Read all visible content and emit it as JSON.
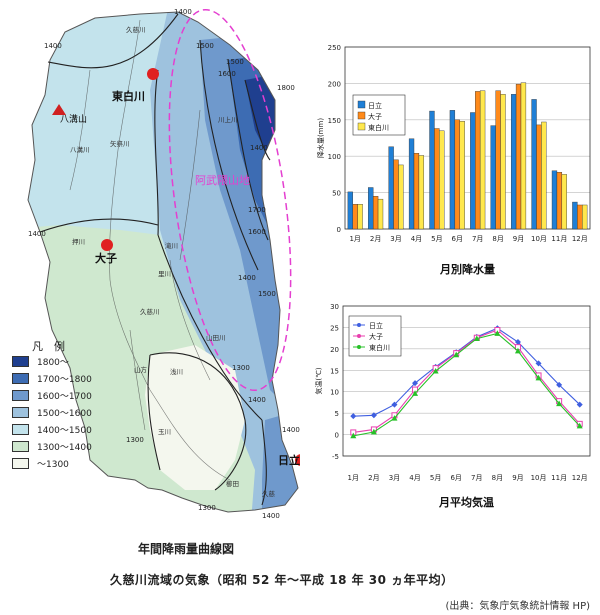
{
  "map": {
    "city_labels": {
      "higashishirakawa": "東白川",
      "daigo": "大子",
      "hitachi": "日立",
      "yamizo": "八溝山"
    },
    "region_label": "阿武隈山地",
    "isohyets": [
      "1400",
      "1400",
      "1400",
      "1400",
      "1400",
      "1400",
      "1500",
      "1500",
      "1500",
      "1600",
      "1600",
      "1700",
      "1800",
      "1300",
      "1300",
      "1300",
      "1400",
      "1400"
    ],
    "rivers": [
      "久慈川",
      "川上川",
      "矢祭川",
      "八溝川",
      "押川",
      "滝川",
      "里川",
      "久慈川",
      "山田川",
      "浅川",
      "玉川",
      "山方"
    ],
    "places": [
      "櫛田",
      "久慈"
    ],
    "caption": "年間降雨量曲線図"
  },
  "legend": {
    "title": "凡　例",
    "items": [
      {
        "label": "1800～",
        "color": "#1f3f8f"
      },
      {
        "label": "1700～1800",
        "color": "#3d6cb3"
      },
      {
        "label": "1600～1700",
        "color": "#6f99cc"
      },
      {
        "label": "1500～1600",
        "color": "#9ec2de"
      },
      {
        "label": "1400～1500",
        "color": "#c3e3ec"
      },
      {
        "label": "1300～1400",
        "color": "#cfe8cf"
      },
      {
        "label": "～1300",
        "color": "#f4f7ee"
      }
    ]
  },
  "titles": {
    "main": "久慈川流域の気象（昭和 52 年～平成 18 年 30 ヵ年平均）",
    "source": "(出典：気象庁気象統計情報 HP)"
  },
  "chart_data": [
    {
      "type": "bar",
      "title": "月別降水量",
      "ylabel": "降水量(mm)",
      "xlabel": "",
      "ylim": [
        0,
        250
      ],
      "yticks": [
        0,
        50,
        100,
        150,
        200,
        250
      ],
      "categories": [
        "1月",
        "2月",
        "3月",
        "4月",
        "5月",
        "6月",
        "7月",
        "8月",
        "9月",
        "10月",
        "11月",
        "12月"
      ],
      "legend_position": "upper-left",
      "series": [
        {
          "name": "日立",
          "color": "#1f7fd6",
          "values": [
            51,
            57,
            113,
            124,
            162,
            163,
            160,
            142,
            185,
            178,
            80,
            37
          ]
        },
        {
          "name": "大子",
          "color": "#ff8a1a",
          "values": [
            34,
            45,
            95,
            104,
            138,
            150,
            189,
            190,
            199,
            143,
            78,
            33
          ]
        },
        {
          "name": "東白川",
          "color": "#ffe84d",
          "values": [
            34,
            41,
            88,
            101,
            135,
            148,
            190,
            185,
            201,
            147,
            75,
            33
          ]
        }
      ]
    },
    {
      "type": "line",
      "title": "月平均気温",
      "ylabel": "気温(℃)",
      "xlabel": "",
      "ylim": [
        -5,
        30
      ],
      "yticks": [
        -5,
        0,
        5,
        10,
        15,
        20,
        25,
        30
      ],
      "categories": [
        "1月",
        "2月",
        "3月",
        "4月",
        "5月",
        "6月",
        "7月",
        "8月",
        "9月",
        "10月",
        "11月",
        "12月"
      ],
      "legend_position": "upper-left",
      "series": [
        {
          "name": "日立",
          "color": "#3f5fe0",
          "marker": "diamond",
          "values": [
            4.3,
            4.5,
            7.0,
            12.0,
            15.8,
            19.2,
            22.8,
            24.8,
            21.6,
            16.6,
            11.6,
            7.0
          ]
        },
        {
          "name": "大子",
          "color": "#e83fae",
          "marker": "square",
          "values": [
            0.5,
            1.2,
            4.5,
            10.5,
            15.5,
            19.0,
            22.6,
            24.4,
            20.4,
            13.8,
            7.8,
            2.5
          ]
        },
        {
          "name": "東白川",
          "color": "#28c028",
          "marker": "triangle",
          "values": [
            -0.3,
            0.6,
            3.8,
            9.6,
            14.8,
            18.6,
            22.4,
            23.6,
            19.5,
            13.2,
            7.2,
            2.0
          ]
        }
      ]
    }
  ]
}
